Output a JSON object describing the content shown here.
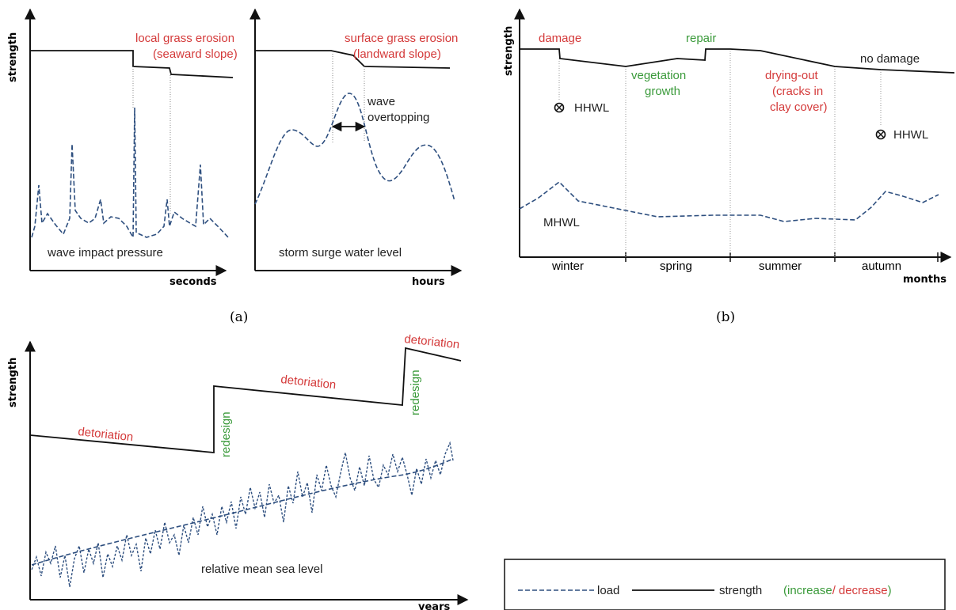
{
  "colors": {
    "red": "#d43a3a",
    "green": "#3a9a3a",
    "load": "#2e4f7f",
    "strength": "#111111"
  },
  "panel_a_left": {
    "ylabel": "strength",
    "xlabel": "seconds",
    "annotation_line1": "local grass erosion",
    "annotation_line2": "(seaward slope)",
    "load_label": "wave impact pressure"
  },
  "panel_a_right": {
    "xlabel": "hours",
    "annotation_line1": "surface grass erosion",
    "annotation_line2": "(landward slope)",
    "overtopping_line1": "wave",
    "overtopping_line2": "overtopping",
    "load_label": "storm surge water level"
  },
  "panel_b": {
    "ylabel": "strength",
    "xlabel": "months",
    "damage": "damage",
    "repair": "repair",
    "no_damage": "no damage",
    "vegetation_line1": "vegetation",
    "vegetation_line2": "growth",
    "drying_line1": "drying-out",
    "drying_line2": "(cracks in",
    "drying_line3": "clay cover)",
    "hhwl_1": "HHWL",
    "hhwl_2": "HHWL",
    "mhwl": "MHWL",
    "seasons": [
      "winter",
      "spring",
      "summer",
      "autumn"
    ]
  },
  "panel_c": {
    "ylabel": "strength",
    "xlabel": "years",
    "detoriation_1": "detoriation",
    "detoriation_2": "detoriation",
    "detoriation_3": "detoriation",
    "redesign_1": "redesign",
    "redesign_2": "redesign",
    "load_label": "relative mean sea level"
  },
  "captions": {
    "a": "(a)",
    "b": "(b)"
  },
  "legend": {
    "load": "load",
    "strength": "strength",
    "open": "(",
    "increase": "increase",
    "slash": "/",
    "decrease": "decrease",
    "close": ")"
  }
}
